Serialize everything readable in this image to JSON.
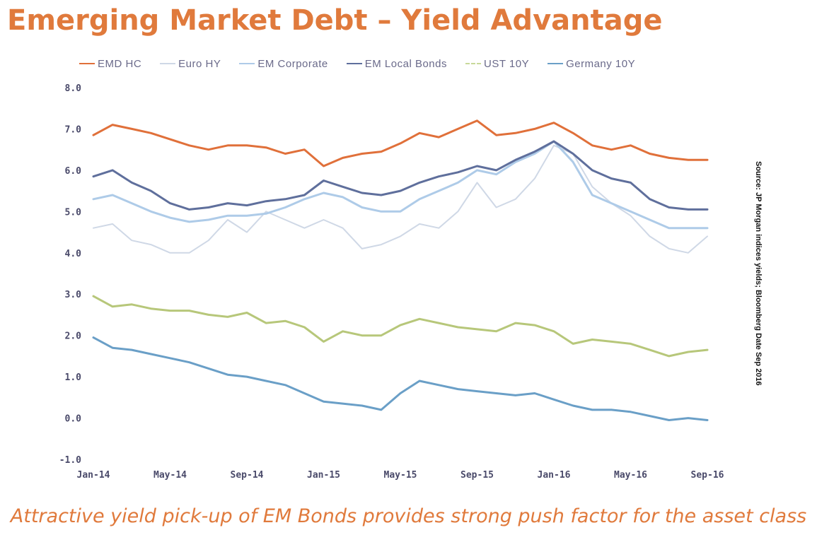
{
  "title": "Emerging Market Debt  –  Yield Advantage",
  "caption": "Attractive yield pick-up of EM Bonds provides  strong push factor for the asset class",
  "source_note": "Source: JP Morgan indices yields; Bloomberg Date Sep 2016",
  "legend": [
    {
      "label": "EMD HC",
      "color": "#e0703a",
      "style": "solid"
    },
    {
      "label": "Euro HY",
      "color": "#cfd8e6",
      "style": "solid"
    },
    {
      "label": "EM Corporate",
      "color": "#aecbe8",
      "style": "solid"
    },
    {
      "label": "EM Local Bonds",
      "color": "#5f6f9c",
      "style": "solid"
    },
    {
      "label": "UST 10Y",
      "color": "#b7c77a",
      "style": "dashed"
    },
    {
      "label": "Germany 10Y",
      "color": "#6a9fc7",
      "style": "solid"
    }
  ],
  "chart_data": {
    "type": "line",
    "ylim": [
      -1.0,
      8.0
    ],
    "y_ticks": [
      "-1.0",
      "0.0",
      "1.0",
      "2.0",
      "3.0",
      "4.0",
      "5.0",
      "6.0",
      "7.0",
      "8.0"
    ],
    "x_ticks": [
      "Jan-14",
      "May-14",
      "Sep-14",
      "Jan-15",
      "May-15",
      "Sep-15",
      "Jan-16",
      "May-16",
      "Sep-16"
    ],
    "x": [
      "Jan-14",
      "Feb-14",
      "Mar-14",
      "Apr-14",
      "May-14",
      "Jun-14",
      "Jul-14",
      "Aug-14",
      "Sep-14",
      "Oct-14",
      "Nov-14",
      "Dec-14",
      "Jan-15",
      "Feb-15",
      "Mar-15",
      "Apr-15",
      "May-15",
      "Jun-15",
      "Jul-15",
      "Aug-15",
      "Sep-15",
      "Oct-15",
      "Nov-15",
      "Dec-15",
      "Jan-16",
      "Feb-16",
      "Mar-16",
      "Apr-16",
      "May-16",
      "Jun-16",
      "Jul-16",
      "Aug-16",
      "Sep-16"
    ],
    "series": [
      {
        "name": "EMD HC",
        "values": [
          6.85,
          7.1,
          7.0,
          6.9,
          6.75,
          6.6,
          6.5,
          6.6,
          6.6,
          6.55,
          6.4,
          6.5,
          6.1,
          6.3,
          6.4,
          6.45,
          6.65,
          6.9,
          6.8,
          7.0,
          7.2,
          6.85,
          6.9,
          7.0,
          7.15,
          6.9,
          6.6,
          6.5,
          6.6,
          6.4,
          6.3,
          6.25,
          6.25
        ]
      },
      {
        "name": "Euro HY",
        "values": [
          4.6,
          4.7,
          4.3,
          4.2,
          4.0,
          4.0,
          4.3,
          4.8,
          4.5,
          5.0,
          4.8,
          4.6,
          4.8,
          4.6,
          4.1,
          4.2,
          4.4,
          4.7,
          4.6,
          5.0,
          5.7,
          5.1,
          5.3,
          5.8,
          6.6,
          6.4,
          5.6,
          5.2,
          4.9,
          4.4,
          4.1,
          4.0,
          4.4
        ]
      },
      {
        "name": "EM Corporate",
        "values": [
          5.3,
          5.4,
          5.2,
          5.0,
          4.85,
          4.75,
          4.8,
          4.9,
          4.9,
          4.95,
          5.1,
          5.3,
          5.45,
          5.35,
          5.1,
          5.0,
          5.0,
          5.3,
          5.5,
          5.7,
          6.0,
          5.9,
          6.2,
          6.4,
          6.7,
          6.2,
          5.4,
          5.2,
          5.0,
          4.8,
          4.6,
          4.6,
          4.6
        ]
      },
      {
        "name": "EM Local Bonds",
        "values": [
          5.85,
          6.0,
          5.7,
          5.5,
          5.2,
          5.05,
          5.1,
          5.2,
          5.15,
          5.25,
          5.3,
          5.4,
          5.75,
          5.6,
          5.45,
          5.4,
          5.5,
          5.7,
          5.85,
          5.95,
          6.1,
          6.0,
          6.25,
          6.45,
          6.7,
          6.4,
          6.0,
          5.8,
          5.7,
          5.3,
          5.1,
          5.05,
          5.05
        ]
      },
      {
        "name": "UST 10Y",
        "values": [
          2.95,
          2.7,
          2.75,
          2.65,
          2.6,
          2.6,
          2.5,
          2.45,
          2.55,
          2.3,
          2.35,
          2.2,
          1.85,
          2.1,
          2.0,
          2.0,
          2.25,
          2.4,
          2.3,
          2.2,
          2.15,
          2.1,
          2.3,
          2.25,
          2.1,
          1.8,
          1.9,
          1.85,
          1.8,
          1.65,
          1.5,
          1.6,
          1.65
        ]
      },
      {
        "name": "Germany 10Y",
        "values": [
          1.95,
          1.7,
          1.65,
          1.55,
          1.45,
          1.35,
          1.2,
          1.05,
          1.0,
          0.9,
          0.8,
          0.6,
          0.4,
          0.35,
          0.3,
          0.2,
          0.6,
          0.9,
          0.8,
          0.7,
          0.65,
          0.6,
          0.55,
          0.6,
          0.45,
          0.3,
          0.2,
          0.2,
          0.15,
          0.05,
          -0.05,
          0.0,
          -0.05
        ]
      }
    ]
  }
}
